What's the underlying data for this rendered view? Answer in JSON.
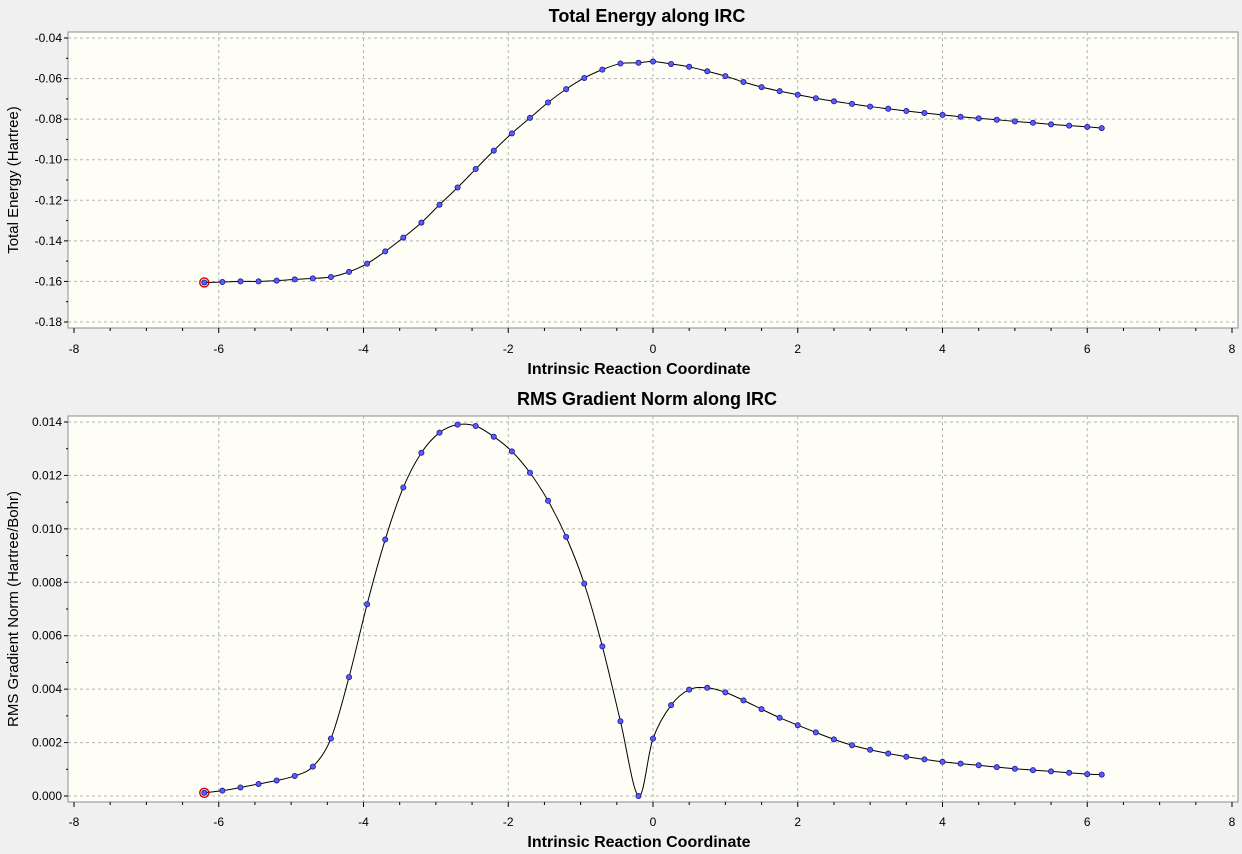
{
  "colors": {
    "background": "#f0f0f0",
    "plot_bg": "#fefef6",
    "grid": "#b4b4b4",
    "line": "#000000",
    "marker_fill": "#5a5aff",
    "marker_stroke": "#1a1a8c",
    "start_marker": "#cc0000"
  },
  "chart_data": [
    {
      "type": "line",
      "title": "Total Energy along IRC",
      "xlabel": "Intrinsic Reaction Coordinate",
      "ylabel": "Total Energy (Hartree)",
      "xlim": [
        -8,
        8
      ],
      "ylim": [
        -0.18,
        -0.04
      ],
      "xticks": [
        -8,
        -6,
        -4,
        -2,
        0,
        2,
        4,
        6,
        8
      ],
      "yticks": [
        -0.18,
        -0.16,
        -0.14,
        -0.12,
        -0.1,
        -0.08,
        -0.06,
        -0.04
      ],
      "xtick_labels": [
        "-8",
        "-6",
        "-4",
        "-2",
        "0",
        "2",
        "4",
        "6",
        "8"
      ],
      "ytick_labels": [
        "-0.18",
        "-0.16",
        "-0.14",
        "-0.12",
        "-0.10",
        "-0.08",
        "-0.06",
        "-0.04"
      ],
      "grid": true,
      "highlight_first_point": true,
      "series": [
        {
          "x": [
            -6.2,
            -5.95,
            -5.7,
            -5.45,
            -5.2,
            -4.95,
            -4.7,
            -4.45,
            -4.2,
            -3.95,
            -3.7,
            -3.45,
            -3.2,
            -2.95,
            -2.7,
            -2.45,
            -2.2,
            -1.95,
            -1.7,
            -1.45,
            -1.2,
            -0.95,
            -0.7,
            -0.45,
            -0.2,
            0.0,
            0.25,
            0.5,
            0.75,
            1.0,
            1.25,
            1.5,
            1.75,
            2.0,
            2.25,
            2.5,
            2.75,
            3.0,
            3.25,
            3.5,
            3.75,
            4.0,
            4.25,
            4.5,
            4.75,
            5.0,
            5.25,
            5.5,
            5.75,
            6.0,
            6.2
          ],
          "y": [
            -0.1605,
            -0.1603,
            -0.16,
            -0.16,
            -0.1596,
            -0.159,
            -0.1585,
            -0.1578,
            -0.1553,
            -0.1512,
            -0.1452,
            -0.1384,
            -0.131,
            -0.1222,
            -0.1137,
            -0.1046,
            -0.0955,
            -0.087,
            -0.0794,
            -0.0718,
            -0.0652,
            -0.0597,
            -0.0556,
            -0.0526,
            -0.0522,
            -0.0516,
            -0.0528,
            -0.0542,
            -0.0564,
            -0.0588,
            -0.0617,
            -0.0642,
            -0.0662,
            -0.068,
            -0.0697,
            -0.0712,
            -0.0725,
            -0.0738,
            -0.0749,
            -0.076,
            -0.077,
            -0.0779,
            -0.0788,
            -0.0796,
            -0.0803,
            -0.0811,
            -0.0818,
            -0.0826,
            -0.0832,
            -0.0838,
            -0.0844
          ]
        }
      ]
    },
    {
      "type": "line",
      "title": "RMS Gradient Norm along IRC",
      "xlabel": "Intrinsic Reaction Coordinate",
      "ylabel": "RMS Gradient Norm (Hartree/Bohr)",
      "xlim": [
        -8,
        8
      ],
      "ylim": [
        0,
        0.014
      ],
      "xticks": [
        -8,
        -6,
        -4,
        -2,
        0,
        2,
        4,
        6,
        8
      ],
      "yticks": [
        0,
        0.002,
        0.004,
        0.006,
        0.008,
        0.01,
        0.012,
        0.014
      ],
      "xtick_labels": [
        "-8",
        "-6",
        "-4",
        "-2",
        "0",
        "2",
        "4",
        "6",
        "8"
      ],
      "ytick_labels": [
        "0.000",
        "0.002",
        "0.004",
        "0.006",
        "0.008",
        "0.010",
        "0.012",
        "0.014"
      ],
      "grid": true,
      "highlight_first_point": true,
      "series": [
        {
          "x": [
            -6.2,
            -5.95,
            -5.7,
            -5.45,
            -5.2,
            -4.95,
            -4.7,
            -4.45,
            -4.2,
            -3.95,
            -3.7,
            -3.45,
            -3.2,
            -2.95,
            -2.7,
            -2.45,
            -2.2,
            -1.95,
            -1.7,
            -1.45,
            -1.2,
            -0.95,
            -0.7,
            -0.45,
            -0.2,
            0.0,
            0.25,
            0.5,
            0.75,
            1.0,
            1.25,
            1.5,
            1.75,
            2.0,
            2.25,
            2.5,
            2.75,
            3.0,
            3.25,
            3.5,
            3.75,
            4.0,
            4.25,
            4.5,
            4.75,
            5.0,
            5.25,
            5.5,
            5.75,
            6.0,
            6.2
          ],
          "y": [
            0.00012,
            0.0002,
            0.00032,
            0.00045,
            0.00058,
            0.00075,
            0.0011,
            0.00215,
            0.00445,
            0.00718,
            0.0096,
            0.01155,
            0.01285,
            0.0136,
            0.0139,
            0.01385,
            0.01345,
            0.0129,
            0.0121,
            0.01105,
            0.0097,
            0.00795,
            0.0056,
            0.0028,
            0.0,
            0.00215,
            0.0034,
            0.00398,
            0.00405,
            0.00388,
            0.00358,
            0.00325,
            0.00293,
            0.00265,
            0.00238,
            0.00212,
            0.0019,
            0.00173,
            0.00159,
            0.00147,
            0.00137,
            0.00128,
            0.00121,
            0.00115,
            0.00108,
            0.00102,
            0.00097,
            0.00092,
            0.00087,
            0.00082,
            0.0008
          ]
        }
      ]
    }
  ]
}
